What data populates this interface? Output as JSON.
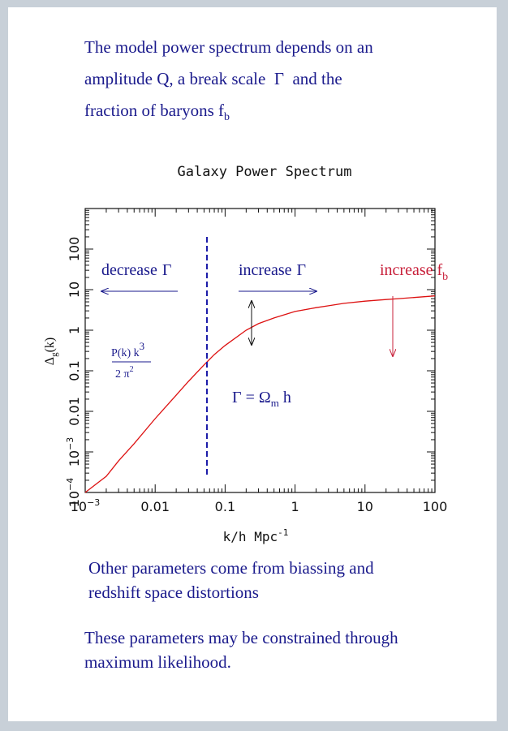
{
  "intro": {
    "line1": "The model power spectrum depends on an",
    "line2_prefix": "amplitude Q, a break scale",
    "line2_gamma": "Γ",
    "line2_suffix": "and the",
    "line3_prefix": "fraction of baryons f",
    "line3_sub": "b"
  },
  "chart_data": {
    "type": "line",
    "title": "Galaxy Power Spectrum",
    "xlabel": "k/h Mpc",
    "xlabel_sup": "-1",
    "ylabel": "Δ",
    "ylabel_sub": "g",
    "ylabel_tail": "(k)",
    "x_scale": "log",
    "y_scale": "log",
    "xlim": [
      0.001,
      100
    ],
    "ylim": [
      0.0001,
      1000
    ],
    "grid": false,
    "x_ticks": [
      {
        "value": 0.001,
        "label": "10",
        "sup": "−3"
      },
      {
        "value": 0.01,
        "label": "0.01"
      },
      {
        "value": 0.1,
        "label": "0.1"
      },
      {
        "value": 1,
        "label": "1"
      },
      {
        "value": 10,
        "label": "10"
      },
      {
        "value": 100,
        "label": "100"
      }
    ],
    "y_ticks": [
      {
        "value": 0.0001,
        "label": "10",
        "sup": "−4"
      },
      {
        "value": 0.001,
        "label": "10",
        "sup": "−3"
      },
      {
        "value": 0.01,
        "label": "0.01"
      },
      {
        "value": 0.1,
        "label": "0.1"
      },
      {
        "value": 1,
        "label": "1"
      },
      {
        "value": 10,
        "label": "10"
      },
      {
        "value": 100,
        "label": "100"
      }
    ],
    "series": [
      {
        "color": "#dd1111",
        "x": [
          0.001,
          0.002,
          0.003,
          0.005,
          0.01,
          0.02,
          0.03,
          0.05,
          0.07,
          0.1,
          0.2,
          0.3,
          0.5,
          1,
          2,
          3,
          5,
          10,
          20,
          30,
          50,
          100
        ],
        "y": [
          6e-05,
          0.00025,
          0.0006,
          0.0016,
          0.0066,
          0.025,
          0.055,
          0.14,
          0.25,
          0.42,
          1.0,
          1.45,
          2.0,
          2.9,
          3.6,
          4.0,
          4.6,
          5.2,
          5.7,
          6.0,
          6.4,
          7.0
        ]
      }
    ],
    "break_line": {
      "x": 0.055,
      "y_from": 0.0001,
      "y_to": 200,
      "color": "#1a1aa8"
    },
    "annotations": {
      "decrease": {
        "text": "decrease",
        "gamma": "Γ",
        "color": "#1a1a8c"
      },
      "increase": {
        "text": "increase",
        "gamma": "Γ",
        "color": "#1a1a8c"
      },
      "increase_fb": {
        "text": "increase f",
        "sub": "b",
        "color": "#c8203a"
      },
      "formula_num": "P(k) k",
      "formula_num_sup": "3",
      "formula_den": "2 π",
      "formula_den_sup": "2",
      "gamma_eq_lhs": "Γ",
      "gamma_eq_mid": " = Ω",
      "gamma_eq_sub": "m",
      "gamma_eq_rhs": " h"
    }
  },
  "other": {
    "line1": "Other parameters come from biassing and",
    "line2": "redshift space distortions"
  },
  "constrained": {
    "line1": "These parameters may be constrained through",
    "line2": "maximum likelihood."
  }
}
